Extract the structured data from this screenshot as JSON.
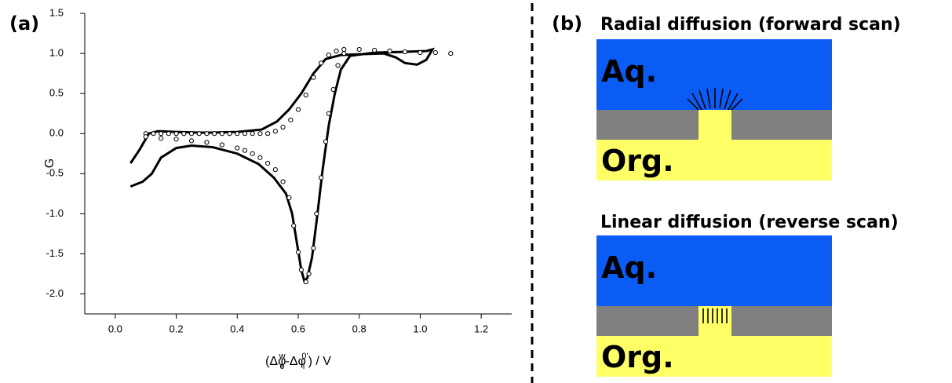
{
  "chart_data": {
    "type": "line",
    "panel_label": "(a)",
    "ylabel": "G",
    "xlabel_parts": [
      "(Δφ",
      "o",
      "w",
      "-Δφ",
      "i",
      "0'",
      ") / V"
    ],
    "xlim": [
      -0.1,
      1.3
    ],
    "ylim": [
      -2.25,
      1.5
    ],
    "xticks": [
      {
        "value": 0,
        "label": "0.0"
      },
      0.2,
      0.4,
      0.6,
      0.8,
      {
        "value": 1,
        "label": "1.0"
      },
      1.2
    ],
    "yticks": [
      {
        "value": -2,
        "label": "-2.0"
      },
      -1.5,
      {
        "value": -1,
        "label": "-1.0"
      },
      -0.5,
      {
        "value": 0,
        "label": "0.0"
      },
      0.5,
      {
        "value": 1,
        "label": "1.0"
      },
      1.5
    ],
    "series": [
      {
        "mode": "line",
        "color": "#000000",
        "x": [
          0.05,
          0.08,
          0.11,
          0.14,
          0.2,
          0.3,
          0.4,
          0.48,
          0.53,
          0.57,
          0.61,
          0.65,
          0.69,
          0.74,
          0.8,
          0.88,
          0.92,
          0.95,
          0.99,
          1.02,
          1.04,
          1.02,
          0.95,
          0.85,
          0.77,
          0.74,
          0.72,
          0.7,
          0.68,
          0.66,
          0.645,
          0.63,
          0.62,
          0.61,
          0.595,
          0.58,
          0.56,
          0.52,
          0.47,
          0.4,
          0.32,
          0.25,
          0.2,
          0.15,
          0.12,
          0.09,
          0.05
        ],
        "values": [
          -0.37,
          -0.2,
          0.0,
          0.03,
          0.02,
          0.01,
          0.02,
          0.05,
          0.15,
          0.3,
          0.5,
          0.75,
          0.93,
          0.98,
          0.99,
          1.0,
          0.95,
          0.88,
          0.86,
          0.92,
          1.05,
          1.03,
          1.02,
          1.01,
          0.97,
          0.8,
          0.5,
          0.1,
          -0.45,
          -1.1,
          -1.55,
          -1.8,
          -1.84,
          -1.7,
          -1.35,
          -1.0,
          -0.75,
          -0.55,
          -0.38,
          -0.25,
          -0.17,
          -0.15,
          -0.18,
          -0.3,
          -0.5,
          -0.6,
          -0.66
        ]
      },
      {
        "mode": "markers",
        "color": "#000000",
        "x": [
          0.1,
          0.125,
          0.15,
          0.175,
          0.2,
          0.225,
          0.25,
          0.275,
          0.3,
          0.325,
          0.35,
          0.375,
          0.4,
          0.425,
          0.45,
          0.475,
          0.5,
          0.525,
          0.55,
          0.575,
          0.6,
          0.625,
          0.65,
          0.675,
          0.7,
          0.725,
          0.75,
          0.8,
          0.85,
          0.9,
          0.95,
          1.0,
          1.05,
          1.1,
          0.75,
          0.73,
          0.715,
          0.7,
          0.69,
          0.675,
          0.66,
          0.65,
          0.635,
          0.625,
          0.61,
          0.6,
          0.585,
          0.57,
          0.55,
          0.525,
          0.5,
          0.475,
          0.45,
          0.425,
          0.4,
          0.35,
          0.3,
          0.25,
          0.2,
          0.15,
          0.1
        ],
        "values": [
          0,
          0,
          0,
          0,
          0,
          0,
          0,
          0,
          0,
          0,
          0,
          0,
          0,
          0,
          0,
          0,
          0,
          0.03,
          0.08,
          0.17,
          0.3,
          0.48,
          0.7,
          0.88,
          0.98,
          1.03,
          1.05,
          1.05,
          1.04,
          1.03,
          1.02,
          1.01,
          1.01,
          1.0,
          1.0,
          0.85,
          0.55,
          0.25,
          -0.1,
          -0.55,
          -1.0,
          -1.43,
          -1.75,
          -1.85,
          -1.7,
          -1.48,
          -1.15,
          -0.8,
          -0.6,
          -0.45,
          -0.37,
          -0.3,
          -0.25,
          -0.21,
          -0.18,
          -0.14,
          -0.11,
          -0.09,
          -0.07,
          -0.06,
          -0.04
        ]
      }
    ]
  },
  "diagram": {
    "label": "(b)",
    "panels": [
      {
        "title": "Radial diffusion (forward scan)",
        "top_label": "Aq.",
        "bottom_label": "Org."
      },
      {
        "title": "Linear diffusion (reverse scan)",
        "top_label": "Aq.",
        "bottom_label": "Org."
      }
    ]
  }
}
